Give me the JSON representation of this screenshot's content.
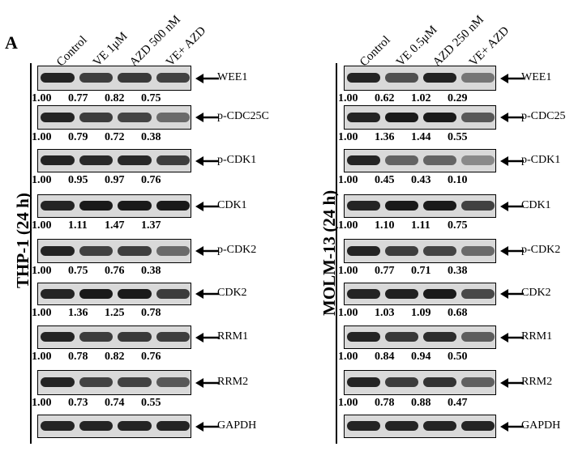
{
  "panel_letter": "A",
  "panels": [
    {
      "id": "thp1",
      "cell_line_label": "THP-1 (24 h)",
      "lanes": [
        "Control",
        "VE 1μM",
        "AZD 500 nM",
        "VE+ AZD"
      ],
      "rows": [
        {
          "protein": "WEE1",
          "values": [
            "1.00",
            "0.77",
            "0.82",
            "0.75"
          ]
        },
        {
          "protein": "p-CDC25C",
          "values": [
            "1.00",
            "0.79",
            "0.72",
            "0.38"
          ]
        },
        {
          "protein": "p-CDK1",
          "values": [
            "1.00",
            "0.95",
            "0.97",
            "0.76"
          ]
        },
        {
          "protein": "CDK1",
          "values": [
            "1.00",
            "1.11",
            "1.47",
            "1.37"
          ]
        },
        {
          "protein": "p-CDK2",
          "values": [
            "1.00",
            "0.75",
            "0.76",
            "0.38"
          ]
        },
        {
          "protein": "CDK2",
          "values": [
            "1.00",
            "1.36",
            "1.25",
            "0.78"
          ]
        },
        {
          "protein": "RRM1",
          "values": [
            "1.00",
            "0.78",
            "0.82",
            "0.76"
          ]
        },
        {
          "protein": "RRM2",
          "values": [
            "1.00",
            "0.73",
            "0.74",
            "0.55"
          ]
        },
        {
          "protein": "GAPDH",
          "values": []
        }
      ]
    },
    {
      "id": "molm13",
      "cell_line_label": "MOLM-13 (24 h)",
      "lanes": [
        "Control",
        "VE 0.5μM",
        "AZD 250 nM",
        "VE+ AZD"
      ],
      "rows": [
        {
          "protein": "WEE1",
          "values": [
            "1.00",
            "0.62",
            "1.02",
            "0.29"
          ]
        },
        {
          "protein": "p-CDC25",
          "values": [
            "1.00",
            "1.36",
            "1.44",
            "0.55"
          ]
        },
        {
          "protein": "p-CDK1",
          "values": [
            "1.00",
            "0.45",
            "0.43",
            "0.10"
          ]
        },
        {
          "protein": "CDK1",
          "values": [
            "1.00",
            "1.10",
            "1.11",
            "0.75"
          ]
        },
        {
          "protein": "p-CDK2",
          "values": [
            "1.00",
            "0.77",
            "0.71",
            "0.38"
          ]
        },
        {
          "protein": "CDK2",
          "values": [
            "1.00",
            "1.03",
            "1.09",
            "0.68"
          ]
        },
        {
          "protein": "RRM1",
          "values": [
            "1.00",
            "0.84",
            "0.94",
            "0.50"
          ]
        },
        {
          "protein": "RRM2",
          "values": [
            "1.00",
            "0.78",
            "0.88",
            "0.47"
          ]
        },
        {
          "protein": "GAPDH",
          "values": []
        }
      ]
    }
  ]
}
